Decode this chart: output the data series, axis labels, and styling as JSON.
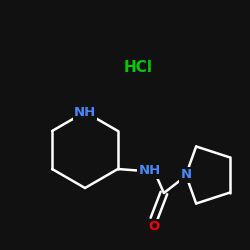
{
  "bg_color": "#111111",
  "white": "#ffffff",
  "blue": "#4488ff",
  "red": "#ff0000",
  "green": "#00cc00",
  "hcl_text": "HCl",
  "nh_piperidine": "NH",
  "nh_amide": "NH",
  "n_pyrrolidine": "N",
  "o_label": "O",
  "bond_lw": 1.8,
  "font_size": 9.5
}
